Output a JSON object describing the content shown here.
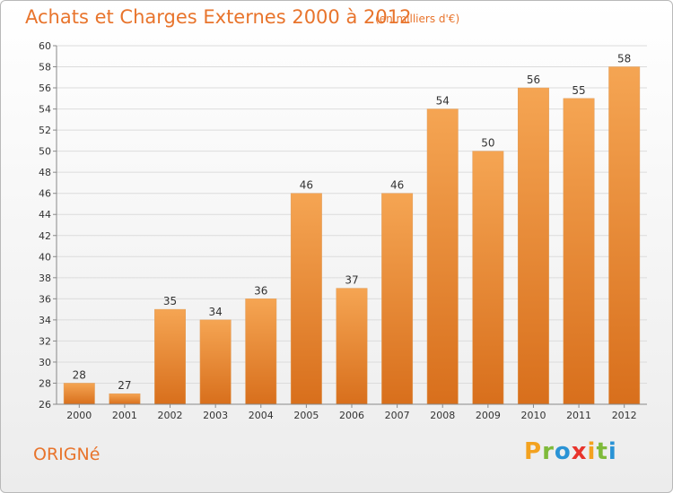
{
  "title": "Achats et Charges Externes 2000 à 2012",
  "subtitle": "(en milliers d'€)",
  "place_name": "ORIGNé",
  "brand": {
    "letters": [
      "P",
      "r",
      "o",
      "x",
      "i",
      "t",
      "i"
    ],
    "colors": [
      "#f3a21f",
      "#7fba3a",
      "#2a93d5",
      "#e8342c",
      "#f3a21f",
      "#7fba3a",
      "#2a93d5"
    ]
  },
  "colors": {
    "accent": "#e8742c",
    "bar_top": "#f5a553",
    "bar_bottom": "#d86f1c",
    "grid": "#dcdcdc",
    "axis": "#888888"
  },
  "chart_data": {
    "type": "bar",
    "categories": [
      "2000",
      "2001",
      "2002",
      "2003",
      "2004",
      "2005",
      "2006",
      "2007",
      "2008",
      "2009",
      "2010",
      "2011",
      "2012"
    ],
    "values": [
      28,
      27,
      35,
      34,
      36,
      46,
      37,
      46,
      54,
      50,
      56,
      55,
      58
    ],
    "ylim": [
      26,
      60
    ],
    "yticks": [
      26,
      28,
      30,
      32,
      34,
      36,
      38,
      40,
      42,
      44,
      46,
      48,
      50,
      52,
      54,
      56,
      58,
      60
    ],
    "grid": true
  }
}
